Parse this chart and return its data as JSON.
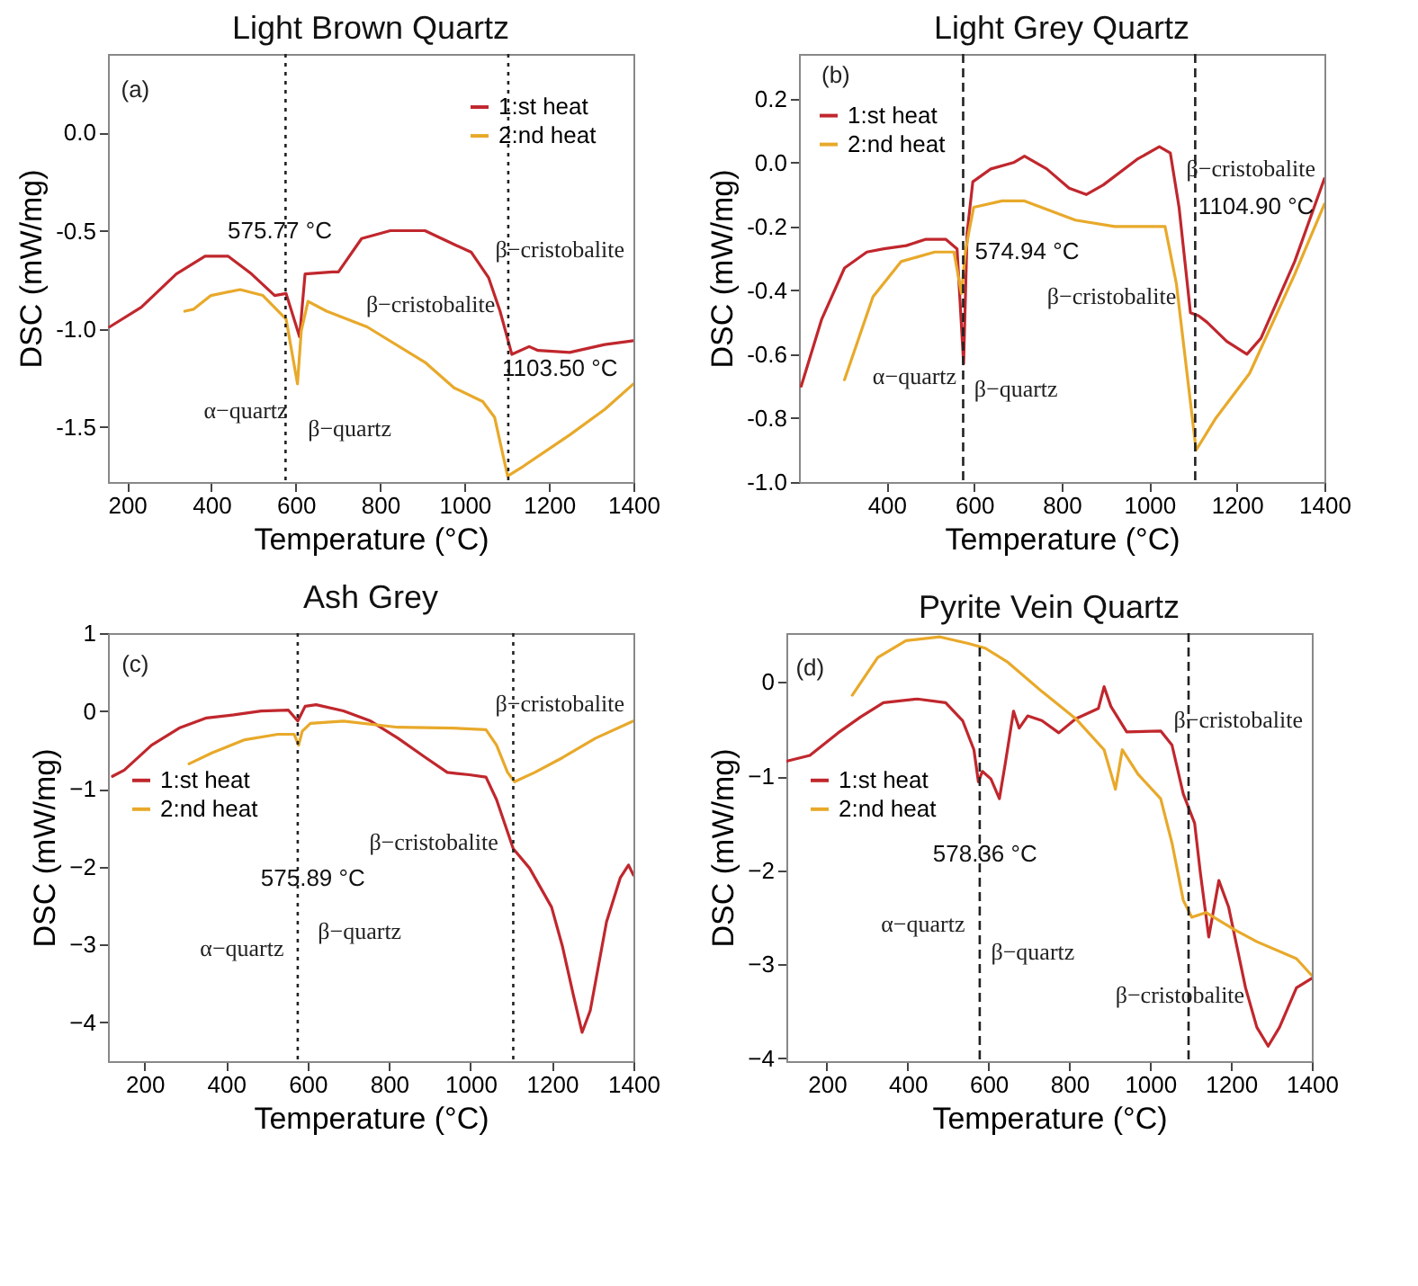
{
  "chart_data": [
    {
      "type": "line",
      "title": "Light Brown Quartz",
      "xlabel": "Temperature (°C)",
      "ylabel": "DSC (mW/mg)",
      "xlim": [
        155,
        1400
      ],
      "ylim": [
        -1.78,
        0.4
      ],
      "xticks": [
        200,
        400,
        600,
        800,
        1000,
        1200,
        1400
      ],
      "yticks": [
        {
          "value": 0,
          "label": "0.0"
        },
        {
          "value": -0.5,
          "label": "-0.5"
        },
        {
          "value": -1,
          "label": "-1.0"
        },
        {
          "value": -1.5,
          "label": "-1.5"
        }
      ],
      "legend": "top right",
      "series": [
        {
          "name": "1:st heat",
          "color": "#c0272d",
          "x": [
            159,
            234,
            317,
            385,
            440,
            495,
            550,
            577,
            609,
            622,
            687,
            701,
            756,
            824,
            906,
            975,
            1016,
            1057,
            1084,
            1112,
            1153,
            1174,
            1249,
            1332,
            1400
          ],
          "values": [
            -0.99,
            -0.89,
            -0.72,
            -0.63,
            -0.63,
            -0.72,
            -0.83,
            -0.82,
            -1.04,
            -0.72,
            -0.71,
            -0.71,
            -0.54,
            -0.5,
            -0.5,
            -0.57,
            -0.61,
            -0.74,
            -0.91,
            -1.13,
            -1.09,
            -1.11,
            -1.12,
            -1.08,
            -1.06
          ]
        },
        {
          "name": "2:nd heat",
          "color": "#e8a92a",
          "x": [
            337,
            358,
            399,
            468,
            522,
            577,
            604,
            613,
            629,
            673,
            769,
            906,
            975,
            1043,
            1071,
            1102,
            1139,
            1249,
            1332,
            1400
          ],
          "values": [
            -0.91,
            -0.9,
            -0.83,
            -0.8,
            -0.83,
            -0.95,
            -1.28,
            -1.01,
            -0.86,
            -0.91,
            -0.99,
            -1.17,
            -1.3,
            -1.37,
            -1.45,
            -1.75,
            -1.7,
            -1.54,
            -1.41,
            -1.28
          ]
        }
      ],
      "ref_lines": [
        {
          "axis": "x",
          "value": 575.77,
          "line_style": "dotted",
          "label": "575.77 °C"
        },
        {
          "axis": "x",
          "value": 1103.5,
          "line_style": "dotted",
          "label": "1103.50 °C"
        }
      ],
      "annotations": [
        "(a)",
        "β−cristobalite",
        "β−cristobalite",
        "α−quartz",
        "β−quartz"
      ]
    },
    {
      "type": "line",
      "title": "Light Grey Quartz",
      "xlabel": "Temperature (°C)",
      "ylabel": "DSC (mW/mg)",
      "xlim": [
        200,
        1400
      ],
      "ylim": [
        -1.0,
        0.34
      ],
      "xticks": [
        400,
        600,
        800,
        1000,
        1200,
        1400
      ],
      "yticks": [
        {
          "value": 0.2,
          "label": "0.2"
        },
        {
          "value": 0,
          "label": "0.0"
        },
        {
          "value": -0.2,
          "label": "-0.2"
        },
        {
          "value": -0.4,
          "label": "-0.4"
        },
        {
          "value": -0.6,
          "label": "-0.6"
        },
        {
          "value": -0.8,
          "label": "-0.8"
        },
        {
          "value": -1,
          "label": "-1.0"
        }
      ],
      "legend": "top left",
      "series": [
        {
          "name": "1:st heat",
          "color": "#c0272d",
          "x": [
            205,
            252,
            304,
            355,
            394,
            445,
            490,
            535,
            561,
            576,
            584,
            597,
            638,
            690,
            715,
            766,
            817,
            856,
            895,
            972,
            1023,
            1048,
            1068,
            1094,
            1113,
            1132,
            1177,
            1223,
            1255,
            1332,
            1400
          ],
          "values": [
            -0.7,
            -0.49,
            -0.33,
            -0.28,
            -0.27,
            -0.26,
            -0.24,
            -0.24,
            -0.27,
            -0.63,
            -0.22,
            -0.06,
            -0.02,
            0.0,
            0.02,
            -0.02,
            -0.08,
            -0.1,
            -0.07,
            0.01,
            0.05,
            0.03,
            -0.14,
            -0.47,
            -0.48,
            -0.5,
            -0.56,
            -0.6,
            -0.55,
            -0.31,
            -0.05
          ]
        },
        {
          "name": "2:nd heat",
          "color": "#e8a92a",
          "x": [
            304,
            369,
            433,
            510,
            554,
            571,
            580,
            589,
            599,
            664,
            715,
            831,
            921,
            1036,
            1062,
            1107,
            1152,
            1229,
            1332,
            1400
          ],
          "values": [
            -0.68,
            -0.42,
            -0.31,
            -0.28,
            -0.28,
            -0.41,
            -0.28,
            -0.21,
            -0.14,
            -0.12,
            -0.12,
            -0.18,
            -0.2,
            -0.2,
            -0.38,
            -0.9,
            -0.8,
            -0.66,
            -0.35,
            -0.13
          ]
        }
      ],
      "ref_lines": [
        {
          "axis": "x",
          "value": 574.94,
          "line_style": "dashed",
          "label": "574.94 °C"
        },
        {
          "axis": "x",
          "value": 1104.9,
          "line_style": "dashed",
          "label": "1104.90 °C"
        }
      ],
      "annotations": [
        "(b)",
        "β−cristobalite",
        "β−cristobalite",
        "α−quartz",
        "β−quartz"
      ]
    },
    {
      "type": "line",
      "title": "Ash Grey",
      "xlabel": "Temperature (°C)",
      "ylabel": "DSC (mW/mg)",
      "xlim": [
        110,
        1400
      ],
      "ylim": [
        -4.5,
        1
      ],
      "xticks": [
        200,
        400,
        600,
        800,
        1000,
        1200,
        1400
      ],
      "yticks": [
        1,
        0,
        -1,
        -2,
        -3,
        -4
      ],
      "legend": "left",
      "series": [
        {
          "name": "1:st heat",
          "color": "#c0272d",
          "x": [
            121,
            150,
            217,
            285,
            352,
            419,
            486,
            553,
            576,
            594,
            621,
            688,
            755,
            822,
            890,
            943,
            997,
            1038,
            1064,
            1105,
            1145,
            1199,
            1226,
            1253,
            1274,
            1294,
            1334,
            1368,
            1388,
            1400
          ],
          "values": [
            -0.84,
            -0.76,
            -0.44,
            -0.22,
            -0.09,
            -0.05,
            0.0,
            0.01,
            -0.13,
            0.06,
            0.08,
            0.0,
            -0.13,
            -0.35,
            -0.6,
            -0.79,
            -0.82,
            -0.85,
            -1.14,
            -1.77,
            -2.02,
            -2.52,
            -3.03,
            -3.66,
            -4.13,
            -3.85,
            -2.71,
            -2.14,
            -1.98,
            -2.11
          ]
        },
        {
          "name": "2:nd heat",
          "color": "#e8a92a",
          "x": [
            309,
            365,
            446,
            527,
            567,
            578,
            587,
            607,
            688,
            822,
            956,
            1038,
            1064,
            1091,
            1108,
            1158,
            1226,
            1307,
            1400
          ],
          "values": [
            -0.68,
            -0.54,
            -0.37,
            -0.3,
            -0.3,
            -0.44,
            -0.26,
            -0.16,
            -0.13,
            -0.21,
            -0.22,
            -0.24,
            -0.44,
            -0.79,
            -0.91,
            -0.79,
            -0.6,
            -0.35,
            -0.13
          ]
        }
      ],
      "ref_lines": [
        {
          "axis": "x",
          "value": 575.89,
          "line_style": "dotted",
          "label": "575.89 °C"
        },
        {
          "axis": "x",
          "value": 1105,
          "line_style": "dotted"
        }
      ],
      "annotations": [
        "(c)",
        "β−cristobalite",
        "β−cristobalite",
        "α−quartz",
        "β−quartz"
      ]
    },
    {
      "type": "line",
      "title": "Pyrite Vein Quartz",
      "xlabel": "Temperature (°C)",
      "ylabel": "DSC (mW/mg)",
      "xlim": [
        100,
        1400
      ],
      "ylim": [
        -4.03,
        0.52
      ],
      "xticks": [
        200,
        400,
        600,
        800,
        1000,
        1200,
        1400
      ],
      "yticks": [
        0,
        -1,
        -2,
        -3,
        -4
      ],
      "legend": "left",
      "series": [
        {
          "name": "1:st heat",
          "color": "#c0272d",
          "x": [
            102,
            158,
            228,
            284,
            340,
            424,
            494,
            536,
            564,
            575,
            585,
            606,
            627,
            641,
            662,
            676,
            697,
            732,
            774,
            816,
            872,
            886,
            903,
            942,
            1026,
            1054,
            1082,
            1110,
            1124,
            1145,
            1170,
            1194,
            1236,
            1264,
            1292,
            1320,
            1362,
            1400
          ],
          "values": [
            -0.84,
            -0.78,
            -0.54,
            -0.37,
            -0.22,
            -0.18,
            -0.22,
            -0.41,
            -0.72,
            -1.06,
            -0.95,
            -1.03,
            -1.24,
            -0.88,
            -0.31,
            -0.49,
            -0.36,
            -0.41,
            -0.54,
            -0.39,
            -0.28,
            -0.05,
            -0.26,
            -0.53,
            -0.52,
            -0.67,
            -1.19,
            -1.5,
            -2.02,
            -2.71,
            -2.11,
            -2.39,
            -3.25,
            -3.67,
            -3.87,
            -3.67,
            -3.25,
            -3.15
          ]
        },
        {
          "name": "2:nd heat",
          "color": "#e8a92a",
          "x": [
            263,
            326,
            396,
            480,
            550,
            592,
            648,
            732,
            816,
            886,
            907,
            914,
            931,
            970,
            1026,
            1054,
            1082,
            1103,
            1138,
            1208,
            1264,
            1362,
            1400
          ],
          "values": [
            -0.14,
            0.26,
            0.44,
            0.48,
            0.41,
            0.36,
            0.21,
            -0.1,
            -0.39,
            -0.72,
            -1.03,
            -1.14,
            -0.72,
            -0.98,
            -1.24,
            -1.71,
            -2.32,
            -2.5,
            -2.45,
            -2.63,
            -2.76,
            -2.94,
            -3.12
          ]
        }
      ],
      "ref_lines": [
        {
          "axis": "x",
          "value": 578.36,
          "line_style": "dashed",
          "label": "578.36 °C"
        },
        {
          "axis": "x",
          "value": 1095,
          "line_style": "dashed"
        }
      ],
      "annotations": [
        "(d)",
        "β−cristobalite",
        "β−cristobalite",
        "α−quartz",
        "β−quartz"
      ]
    }
  ]
}
